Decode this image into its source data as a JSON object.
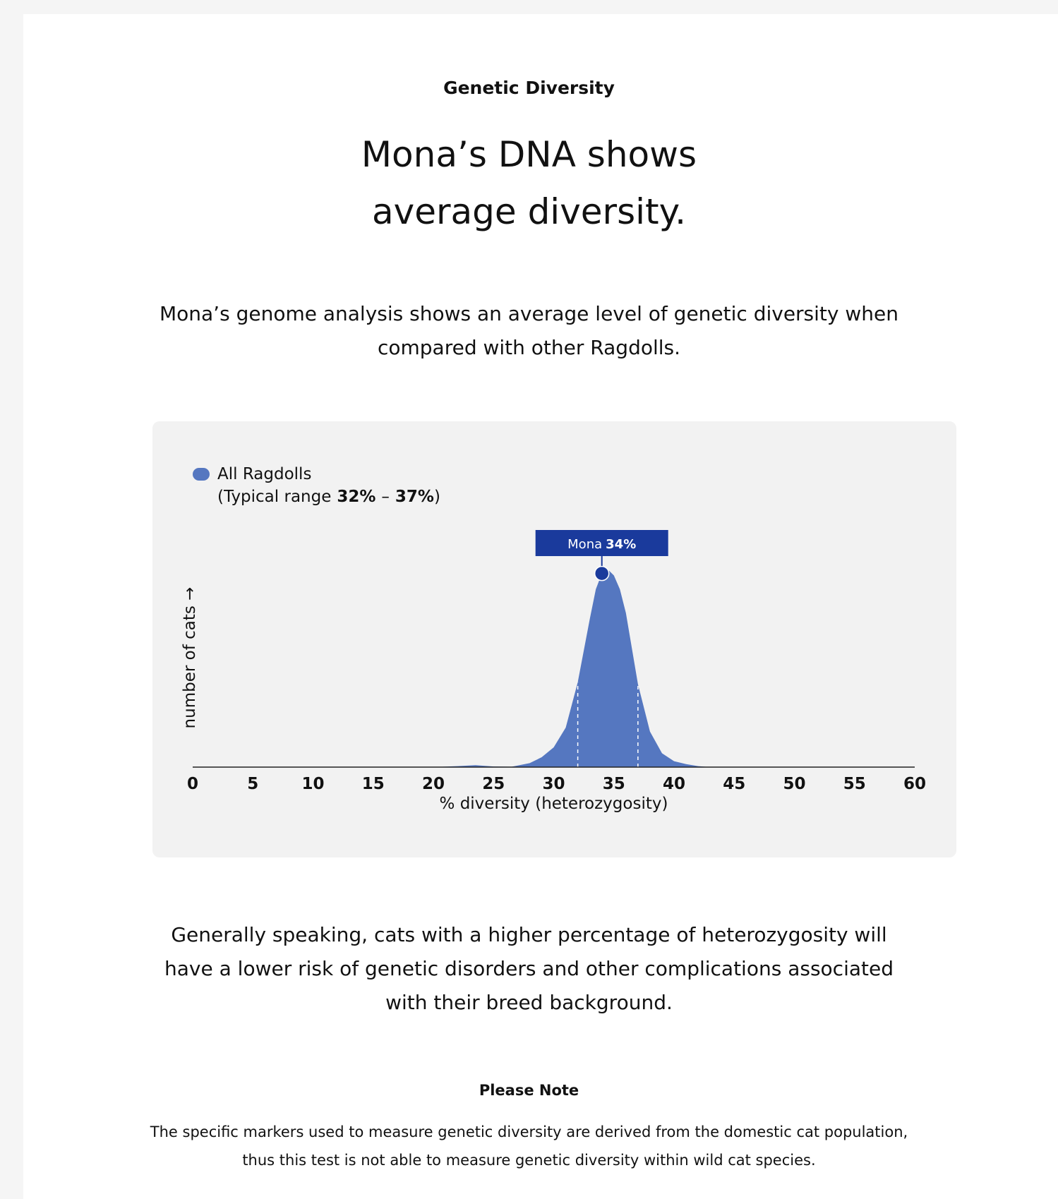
{
  "header": {
    "eyebrow": "Genetic Diversity",
    "title_lines": [
      "Mona’s DNA shows",
      "average diversity."
    ]
  },
  "intro_lines": [
    "Mona’s genome analysis shows an average level of genetic diversity when",
    "compared with other Ragdolls."
  ],
  "chart_data": {
    "type": "area",
    "x": [
      0,
      20,
      22,
      23.5,
      25,
      26.5,
      28,
      29,
      30,
      31,
      32,
      33,
      33.5,
      34,
      34.5,
      35,
      35.5,
      36,
      37,
      38,
      39,
      40,
      41,
      42,
      43,
      60
    ],
    "series": [
      {
        "name": "All Ragdolls",
        "color": "#5577c0",
        "values": [
          0,
          0,
          0.5,
          1,
          0.3,
          0.2,
          2,
          5,
          10,
          20,
          43,
          75,
          90,
          98,
          100,
          97,
          90,
          78,
          42,
          18,
          7,
          3,
          1.5,
          0.5,
          0,
          0
        ]
      }
    ],
    "xlim": [
      0,
      60
    ],
    "xticks": [
      0,
      5,
      10,
      15,
      20,
      25,
      30,
      35,
      40,
      45,
      50,
      55,
      60
    ],
    "ylim": [
      0,
      100
    ],
    "xlabel": "% diversity (heterozygosity)",
    "ylabel": "number of cats →",
    "typical_range": {
      "open": "(Typical range",
      "dash": "–",
      "close": ")",
      "values": [
        32,
        37
      ],
      "value_labels": [
        "32%",
        "37%"
      ]
    },
    "marker": {
      "name": "Mona",
      "value": 34,
      "value_label": "34%",
      "color": "#1a3a9c"
    }
  },
  "body_lines": [
    "Generally speaking, cats with a higher percentage of heterozygosity will",
    "have a lower risk of genetic disorders and other complications associated",
    "with their breed background."
  ],
  "note": {
    "title": "Please Note",
    "lines": [
      "The specific markers used to measure genetic diversity are derived from the domestic cat population,",
      "thus this test is not able to measure genetic diversity within wild cat species."
    ]
  }
}
